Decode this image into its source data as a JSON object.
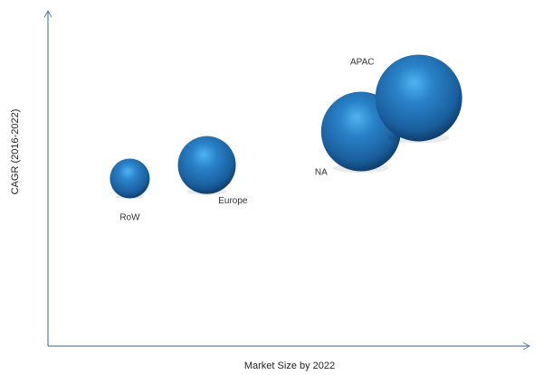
{
  "chart_data": {
    "type": "scatter",
    "subtype": "bubble",
    "title": "",
    "xlabel": "Market Size by 2022",
    "ylabel": "CAGR (2016-2022)",
    "xlim": [
      0,
      100
    ],
    "ylim": [
      0,
      100
    ],
    "grid": false,
    "ticks": false,
    "units": "relative (axes unlabeled)",
    "colors": {
      "bubble": "#1f6db0",
      "highlight": "#4fb3f0",
      "axis": "#5b7fa6"
    },
    "points": [
      {
        "label": "RoW",
        "x": 17,
        "y": 50,
        "size": 22
      },
      {
        "label": "Europe",
        "x": 33,
        "y": 54,
        "size": 32
      },
      {
        "label": "NA",
        "x": 65,
        "y": 64,
        "size": 44
      },
      {
        "label": "APAC",
        "x": 77,
        "y": 74,
        "size": 48
      }
    ]
  }
}
